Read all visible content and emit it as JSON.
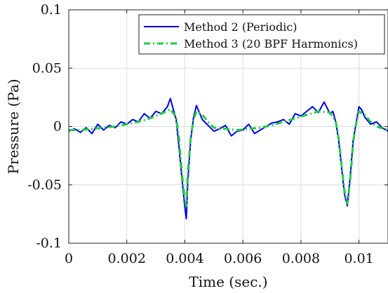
{
  "chart_data": {
    "type": "line",
    "title": "",
    "xlabel": "Time (sec.)",
    "ylabel": "Pressure (Pa)",
    "xlim": [
      0,
      0.011
    ],
    "ylim": [
      -0.1,
      0.1
    ],
    "xticks": [
      0,
      0.002,
      0.004,
      0.006,
      0.008,
      0.01
    ],
    "xtick_labels": [
      "0",
      "0.002",
      "0.004",
      "0.006",
      "0.008",
      "0.01"
    ],
    "yticks": [
      -0.1,
      -0.05,
      0,
      0.05,
      0.1
    ],
    "ytick_labels": [
      "-0.1",
      "-0.05",
      "0",
      "0.05",
      "0.1"
    ],
    "grid": true,
    "legend_position": "top-right",
    "series": [
      {
        "name": "Method 2 (Periodic)",
        "color": "#0000e0",
        "style": "solid",
        "x": [
          0,
          0.0002,
          0.0004,
          0.0006,
          0.0008,
          0.001,
          0.0012,
          0.0014,
          0.0016,
          0.0018,
          0.002,
          0.0022,
          0.0024,
          0.0026,
          0.0028,
          0.003,
          0.0032,
          0.0034,
          0.0035,
          0.0036,
          0.0037,
          0.0038,
          0.0039,
          0.004,
          0.00405,
          0.0041,
          0.0042,
          0.0043,
          0.0044,
          0.0045,
          0.0046,
          0.0048,
          0.005,
          0.0052,
          0.0054,
          0.0056,
          0.0058,
          0.006,
          0.0062,
          0.0064,
          0.0066,
          0.0068,
          0.007,
          0.0072,
          0.0074,
          0.0076,
          0.0078,
          0.008,
          0.0082,
          0.0084,
          0.0086,
          0.0088,
          0.009,
          0.0091,
          0.0092,
          0.0093,
          0.0094,
          0.0095,
          0.0096,
          0.0097,
          0.0098,
          0.0099,
          0.01,
          0.0101,
          0.0102,
          0.0104,
          0.0106,
          0.0108,
          0.011
        ],
        "y": [
          -0.004,
          -0.002,
          -0.005,
          -0.001,
          -0.006,
          0.002,
          -0.003,
          0.001,
          -0.001,
          0.004,
          0.002,
          0.006,
          0.004,
          0.011,
          0.007,
          0.013,
          0.011,
          0.017,
          0.024,
          0.015,
          0.006,
          -0.018,
          -0.045,
          -0.069,
          -0.079,
          -0.048,
          -0.012,
          0.008,
          0.018,
          0.012,
          0.006,
          0.001,
          -0.004,
          -0.002,
          0.001,
          -0.008,
          -0.004,
          -0.003,
          0.002,
          -0.006,
          -0.003,
          0.0,
          0.003,
          0.004,
          0.006,
          0.002,
          0.011,
          0.009,
          0.013,
          0.017,
          0.012,
          0.021,
          0.011,
          0.013,
          0.004,
          -0.012,
          -0.035,
          -0.058,
          -0.068,
          -0.042,
          -0.012,
          0.003,
          0.017,
          0.014,
          0.008,
          0.002,
          0.004,
          -0.001,
          -0.004
        ]
      },
      {
        "name": "Method 3 (20 BPF Harmonics)",
        "color": "#22cc44",
        "style": "dashed",
        "x": [
          0,
          0.0004,
          0.0008,
          0.0012,
          0.0016,
          0.002,
          0.0024,
          0.0028,
          0.0032,
          0.0035,
          0.0037,
          0.0038,
          0.0039,
          0.004,
          0.00405,
          0.0041,
          0.0042,
          0.0043,
          0.0044,
          0.0046,
          0.0048,
          0.005,
          0.0054,
          0.0058,
          0.0062,
          0.0066,
          0.007,
          0.0074,
          0.0078,
          0.0082,
          0.0086,
          0.009,
          0.0092,
          0.0093,
          0.0094,
          0.0095,
          0.0096,
          0.0097,
          0.0098,
          0.0099,
          0.01,
          0.0102,
          0.0104,
          0.0106,
          0.011
        ],
        "y": [
          -0.003,
          -0.003,
          -0.002,
          -0.001,
          0.0,
          0.002,
          0.004,
          0.007,
          0.011,
          0.015,
          0.008,
          -0.01,
          -0.04,
          -0.063,
          -0.068,
          -0.04,
          -0.01,
          0.006,
          0.013,
          0.01,
          0.004,
          -0.001,
          -0.002,
          -0.003,
          -0.002,
          -0.001,
          0.001,
          0.004,
          0.007,
          0.01,
          0.013,
          0.012,
          0.004,
          -0.01,
          -0.033,
          -0.055,
          -0.066,
          -0.045,
          -0.013,
          0.002,
          0.013,
          0.01,
          0.004,
          0.0,
          -0.003
        ]
      }
    ]
  }
}
